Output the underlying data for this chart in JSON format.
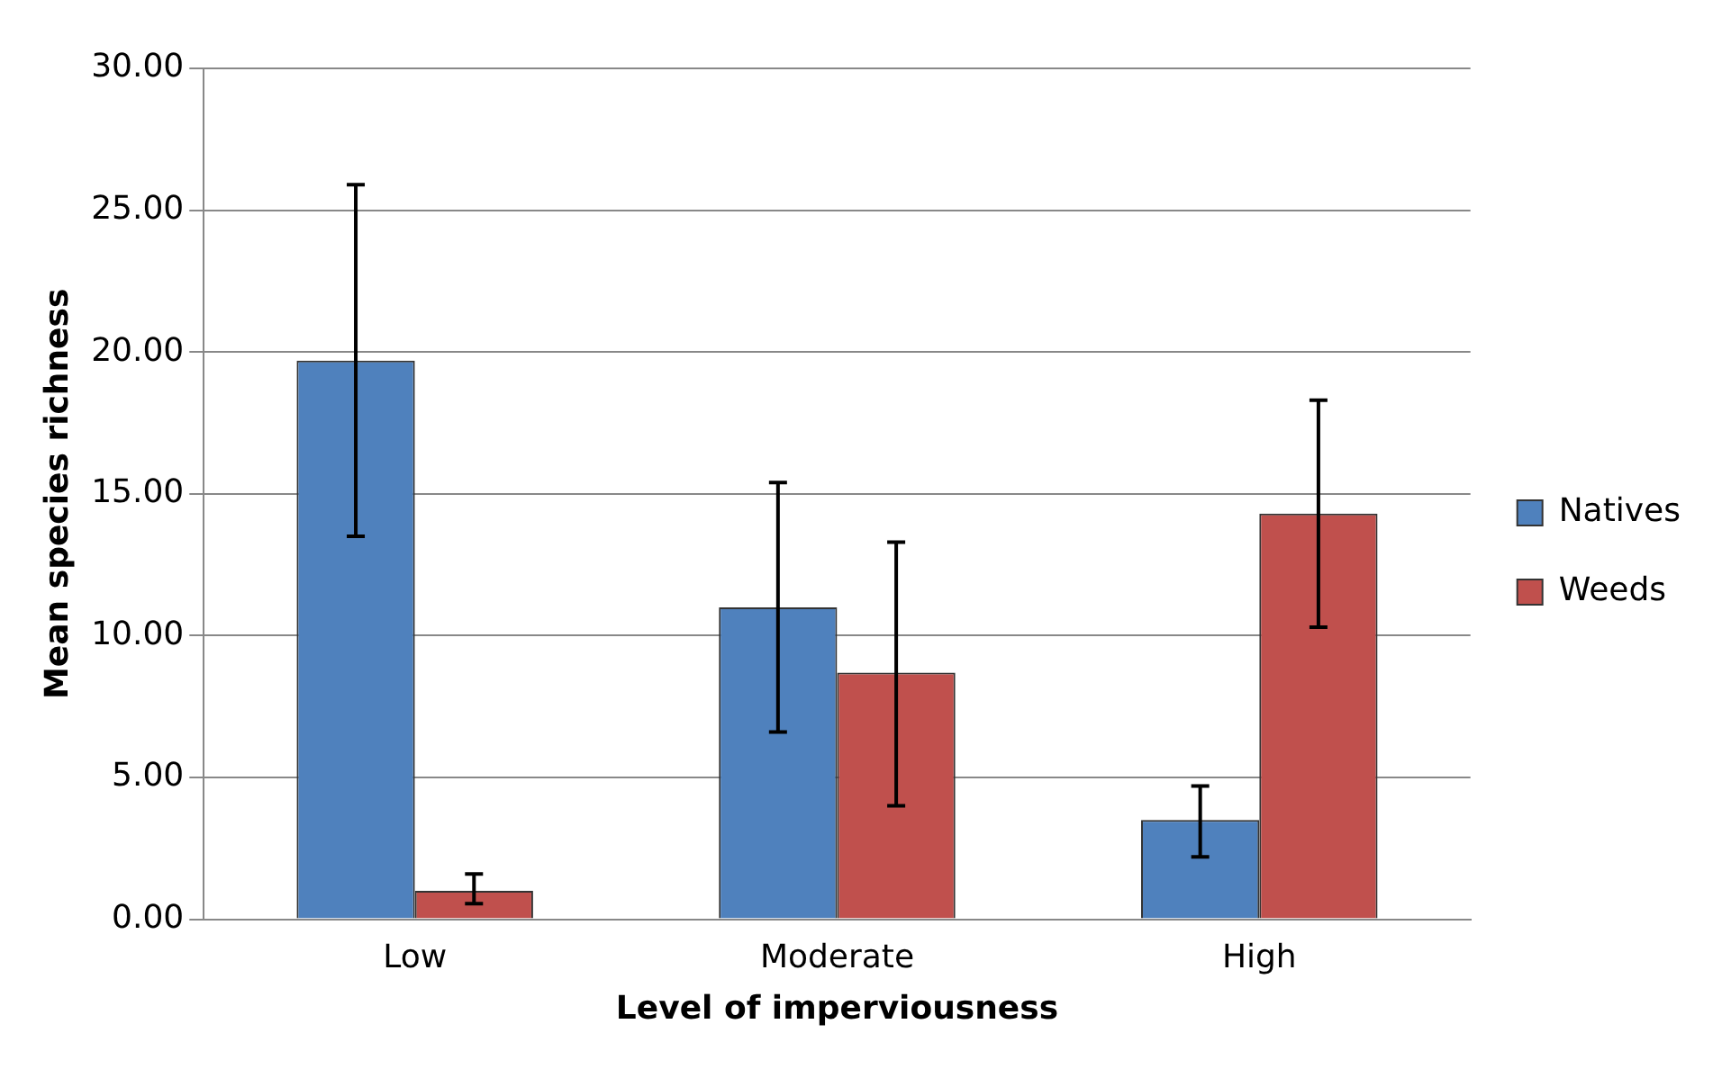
{
  "chart_data": {
    "type": "bar",
    "xlabel": "Level of imperviousness",
    "ylabel": "Mean species richness",
    "categories": [
      "Low",
      "Moderate",
      "High"
    ],
    "series": [
      {
        "name": "Natives",
        "color": "#4f81bd",
        "values": [
          19.7,
          11.0,
          3.5
        ],
        "errors": [
          [
            13.5,
            25.9
          ],
          [
            6.6,
            15.4
          ],
          [
            2.2,
            4.7
          ]
        ]
      },
      {
        "name": "Weeds",
        "color": "#c0504d",
        "values": [
          1.0,
          8.7,
          14.3
        ],
        "errors": [
          [
            0.55,
            1.6
          ],
          [
            4.0,
            13.3
          ],
          [
            10.3,
            18.3
          ]
        ]
      }
    ],
    "ylim": [
      0,
      30
    ],
    "yticks": [
      {
        "value": 0,
        "label": "0.00"
      },
      {
        "value": 5,
        "label": "5.00"
      },
      {
        "value": 10,
        "label": "10.00"
      },
      {
        "value": 15,
        "label": "15.00"
      },
      {
        "value": 20,
        "label": "20.00"
      },
      {
        "value": 25,
        "label": "25.00"
      },
      {
        "value": 30,
        "label": "30.00"
      }
    ],
    "grid": "y",
    "legend": "right"
  }
}
